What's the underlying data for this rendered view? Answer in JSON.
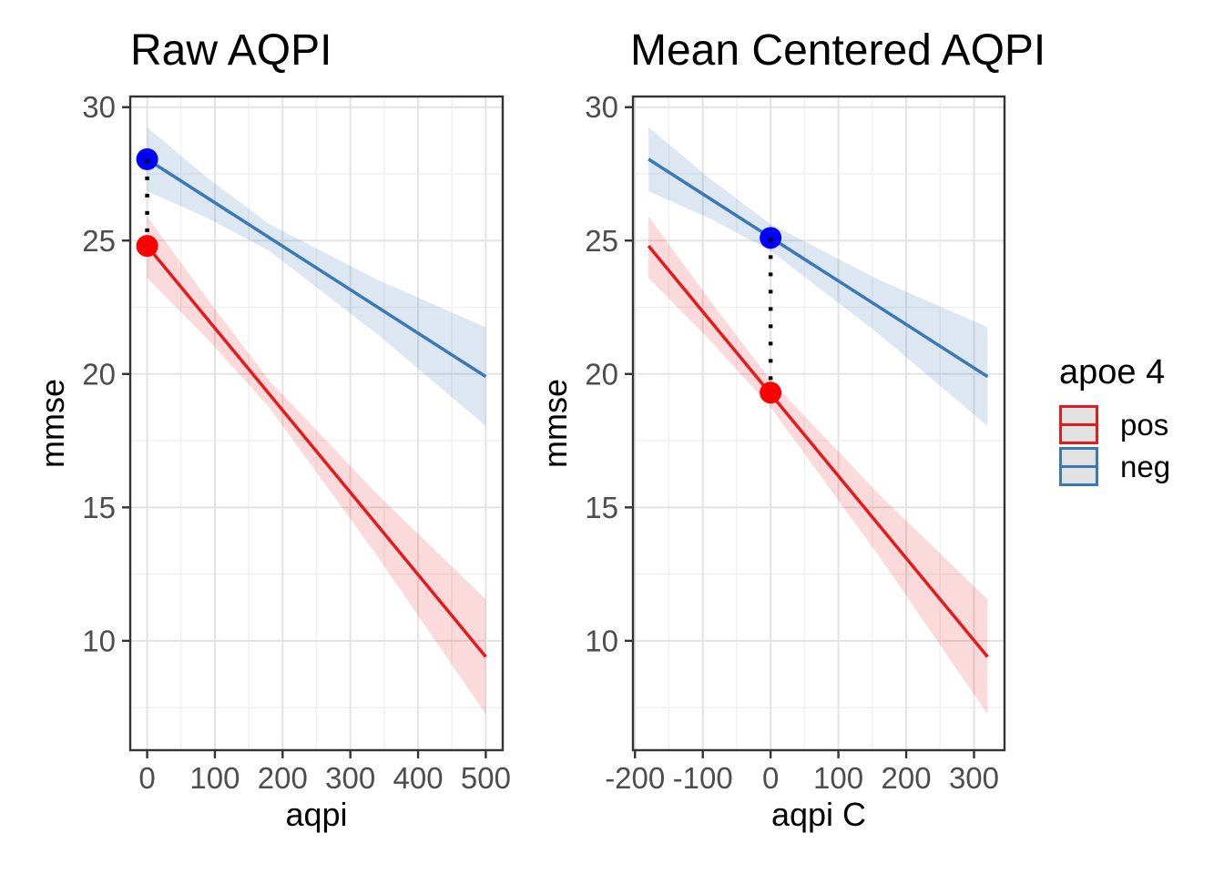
{
  "colors": {
    "pos": "#E41A1C",
    "neg": "#3B79B5",
    "pos_fill": "rgba(228,26,28,0.16)",
    "neg_fill": "rgba(59,121,181,0.18)",
    "pos_point": "#FF0000",
    "neg_point": "#0000FF",
    "connector": "#000000",
    "grid_major": "#E3E3E3",
    "grid_minor": "#F1F1F1",
    "panel_border": "#333333",
    "tick_mark": "#333333",
    "tick_text": "#4D4D4D",
    "title_text": "#000000"
  },
  "legend": {
    "title": "apoe 4",
    "entries": [
      {
        "label": "pos",
        "color_key": "pos"
      },
      {
        "label": "neg",
        "color_key": "neg"
      }
    ]
  },
  "chart_data": [
    {
      "type": "line",
      "title": "Raw AQPI",
      "xlabel": "aqpi",
      "ylabel": "mmse",
      "xlim": [
        -25,
        525
      ],
      "ylim": [
        5.9,
        30.4
      ],
      "x_ticks": [
        [
          0,
          "0"
        ],
        [
          100,
          "100"
        ],
        [
          200,
          "200"
        ],
        [
          300,
          "300"
        ],
        [
          400,
          "400"
        ],
        [
          500,
          "500"
        ]
      ],
      "y_ticks": [
        [
          30,
          "30"
        ],
        [
          25,
          "25"
        ],
        [
          20,
          "20"
        ],
        [
          15,
          "15"
        ],
        [
          10,
          "10"
        ]
      ],
      "x_minor": [
        50,
        150,
        250,
        350,
        450
      ],
      "y_minor": [
        7.5,
        12.5,
        17.5,
        22.5,
        27.5
      ],
      "series": [
        {
          "name": "neg",
          "color_key": "neg",
          "fill_key": "neg_fill",
          "line": [
            [
              0,
              28.05
            ],
            [
              500,
              19.9
            ]
          ],
          "ribbon": [
            [
              0,
              26.85,
              29.25
            ],
            [
              90,
              25.83,
              27.33
            ],
            [
              180,
              24.62,
              25.62
            ],
            [
              340,
              21.49,
              23.53
            ],
            [
              500,
              18.05,
              21.75
            ]
          ]
        },
        {
          "name": "pos",
          "color_key": "pos",
          "fill_key": "pos_fill",
          "line": [
            [
              0,
              24.8
            ],
            [
              500,
              9.4
            ]
          ],
          "ribbon": [
            [
              0,
              23.6,
              25.9
            ],
            [
              90,
              21.28,
              22.78
            ],
            [
              180,
              18.76,
              19.76
            ],
            [
              340,
              13.17,
              15.49
            ],
            [
              500,
              7.25,
              11.55
            ]
          ]
        }
      ],
      "points": [
        {
          "x": 0,
          "y": 28.05,
          "series": "neg"
        },
        {
          "x": 0,
          "y": 24.8,
          "series": "pos"
        }
      ],
      "connector": {
        "x": 0,
        "y1": 24.8,
        "y2": 28.05
      }
    },
    {
      "type": "line",
      "title": "Mean Centered AQPI",
      "xlabel": "aqpi C",
      "ylabel": "mmse",
      "xlim": [
        -203,
        345
      ],
      "ylim": [
        5.9,
        30.4
      ],
      "x_ticks": [
        [
          -200,
          "-200"
        ],
        [
          -100,
          "-100"
        ],
        [
          0,
          "0"
        ],
        [
          100,
          "100"
        ],
        [
          200,
          "200"
        ],
        [
          300,
          "300"
        ]
      ],
      "y_ticks": [
        [
          30,
          "30"
        ],
        [
          25,
          "25"
        ],
        [
          20,
          "20"
        ],
        [
          15,
          "15"
        ],
        [
          10,
          "10"
        ]
      ],
      "x_minor": [
        -150,
        -50,
        50,
        150,
        250
      ],
      "y_minor": [
        7.5,
        12.5,
        17.5,
        22.5,
        27.5
      ],
      "series": [
        {
          "name": "neg",
          "color_key": "neg",
          "fill_key": "neg_fill",
          "line": [
            [
              -180,
              28.05
            ],
            [
              320,
              19.9
            ]
          ],
          "ribbon": [
            [
              -180,
              26.85,
              29.25
            ],
            [
              -90,
              25.83,
              27.33
            ],
            [
              0,
              24.62,
              25.62
            ],
            [
              160,
              21.49,
              23.53
            ],
            [
              320,
              18.05,
              21.75
            ]
          ]
        },
        {
          "name": "pos",
          "color_key": "pos",
          "fill_key": "pos_fill",
          "line": [
            [
              -180,
              24.8
            ],
            [
              320,
              9.4
            ]
          ],
          "ribbon": [
            [
              -180,
              23.6,
              25.9
            ],
            [
              -90,
              21.28,
              22.78
            ],
            [
              0,
              18.76,
              19.76
            ],
            [
              160,
              13.17,
              15.49
            ],
            [
              320,
              7.25,
              11.55
            ]
          ]
        }
      ],
      "points": [
        {
          "x": 0,
          "y": 25.1,
          "series": "neg"
        },
        {
          "x": 0,
          "y": 19.3,
          "series": "pos"
        }
      ],
      "connector": {
        "x": 0,
        "y1": 19.3,
        "y2": 25.1
      }
    }
  ]
}
